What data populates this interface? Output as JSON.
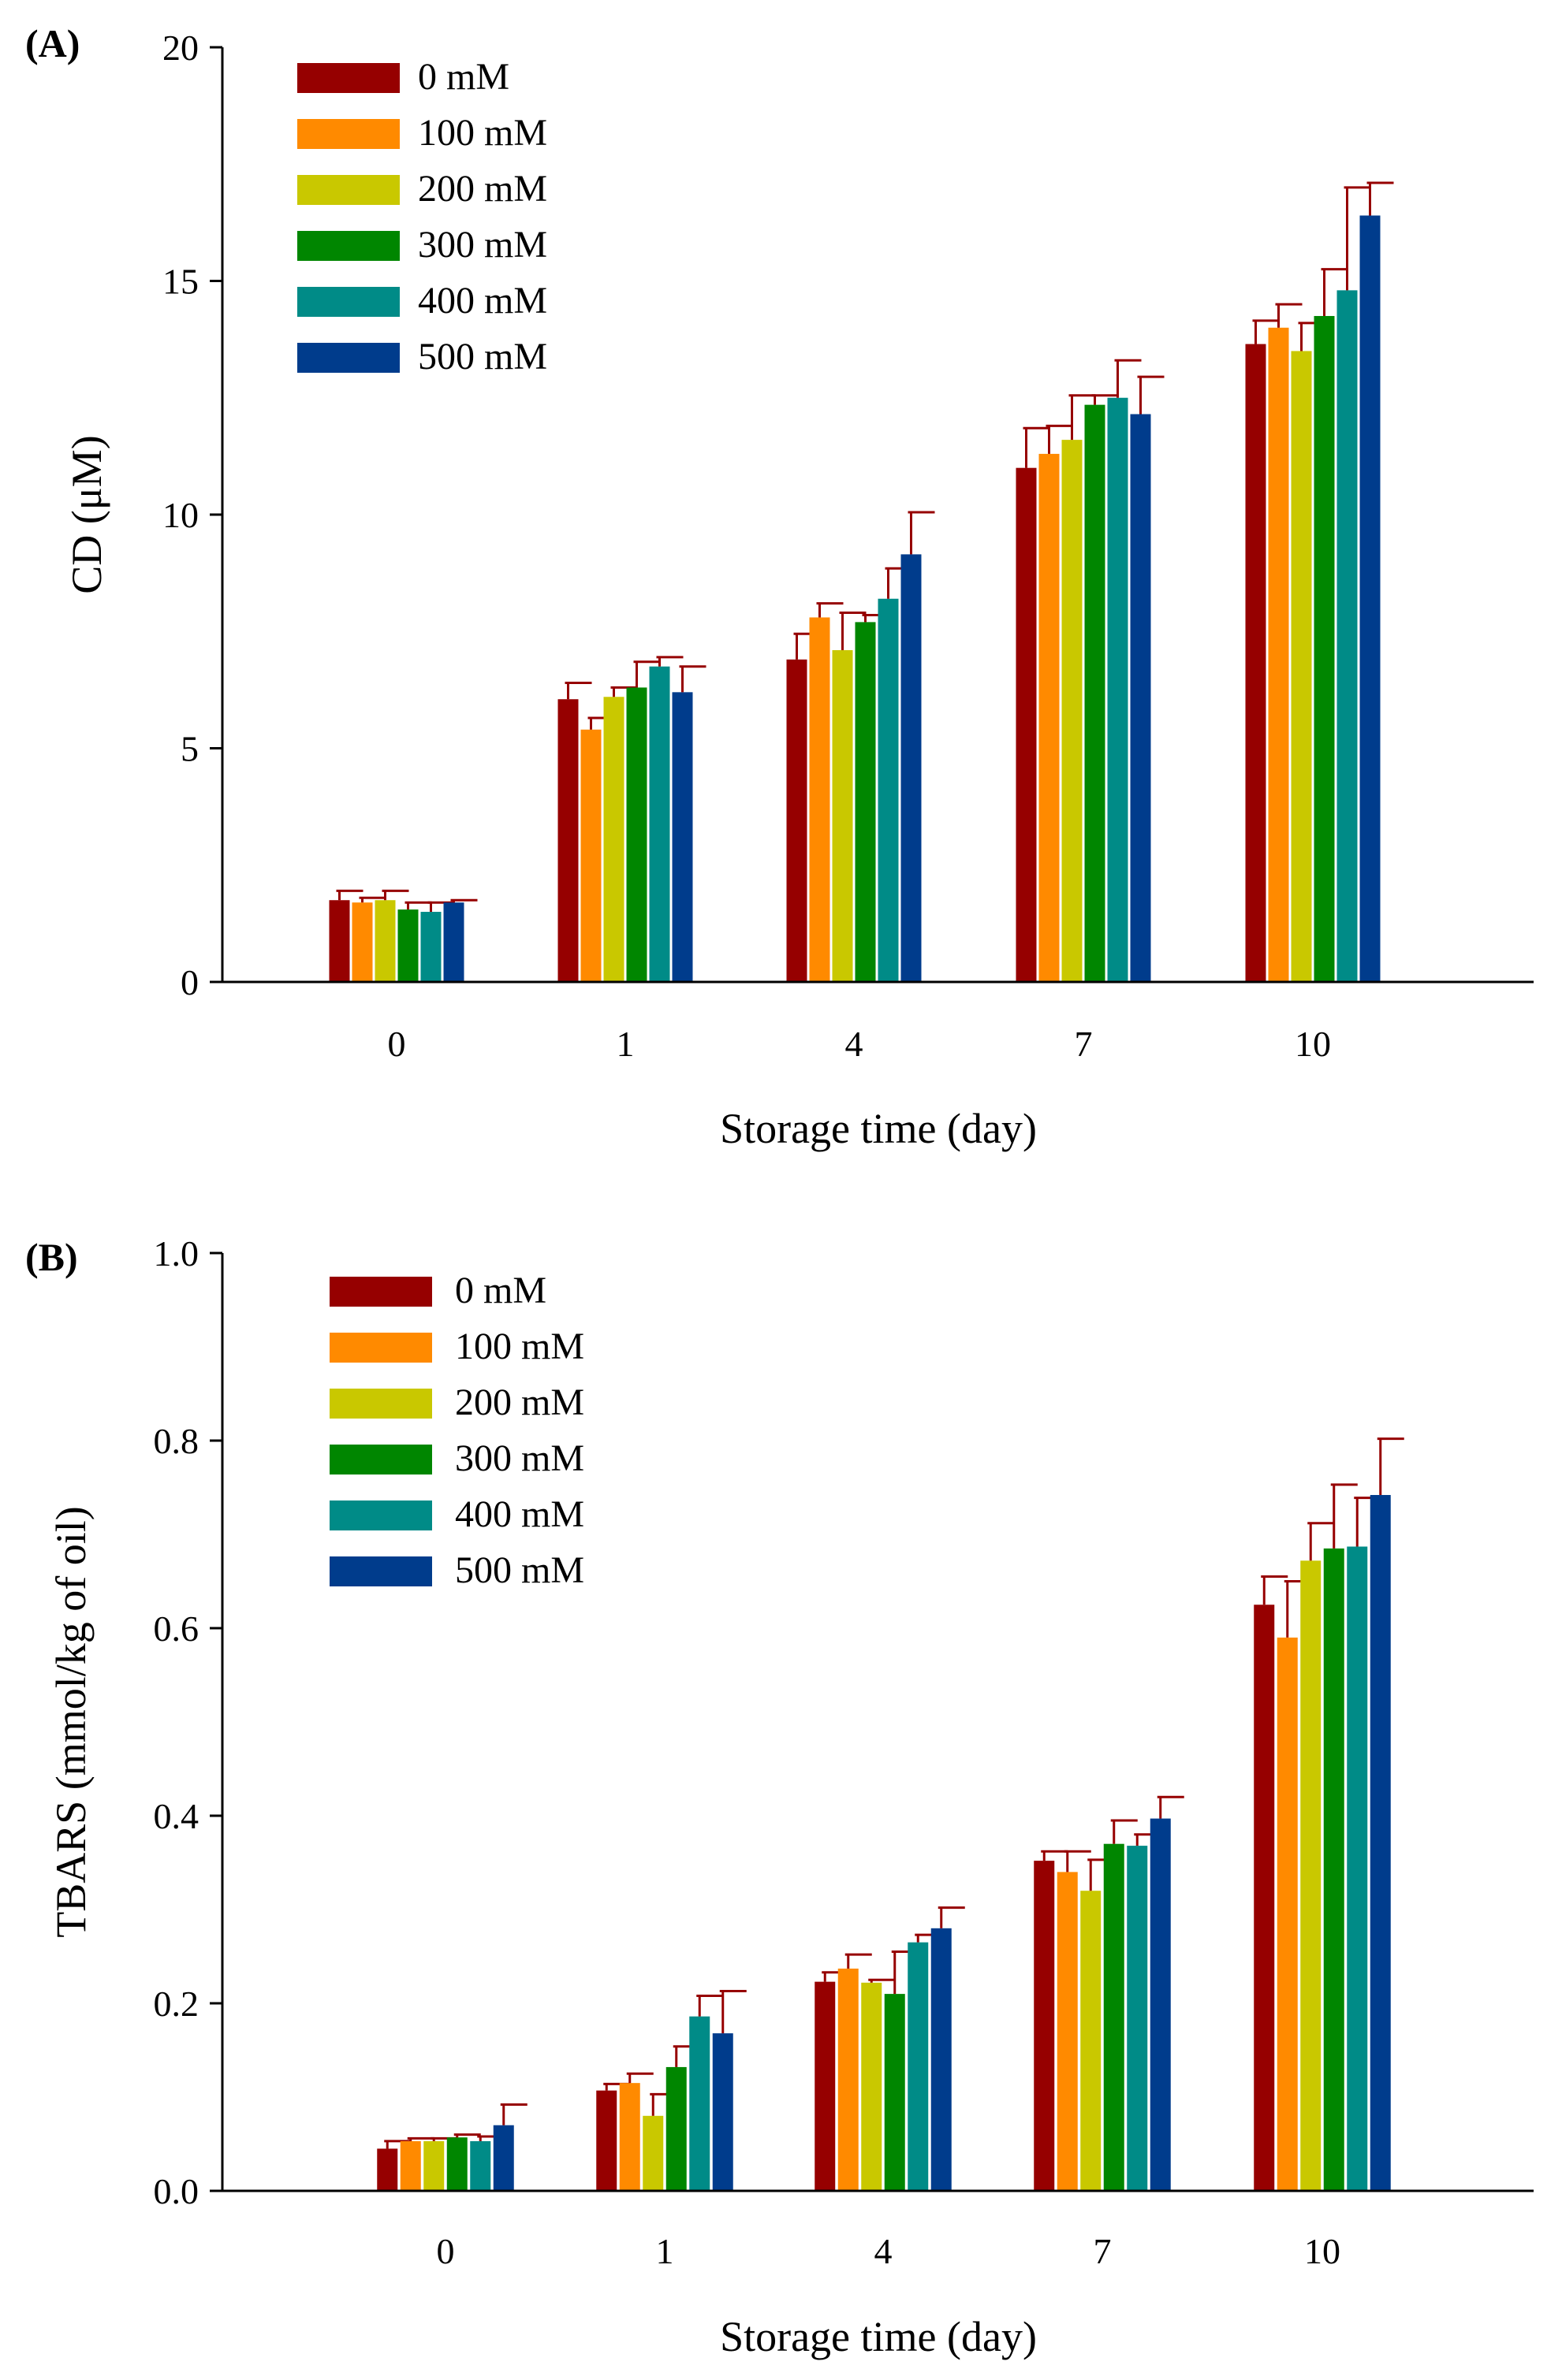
{
  "colors": {
    "0 mM": "#960000",
    "100 mM": "#ff8a00",
    "200 mM": "#c9c800",
    "300 mM": "#008600",
    "400 mM": "#008b87",
    "500 mM": "#003c8c",
    "error_bar": "#960000",
    "axis": "#000000"
  },
  "chart_data": [
    {
      "type": "bar",
      "panel_label": "(A)",
      "categories": [
        "0",
        "1",
        "4",
        "7",
        "10"
      ],
      "xlabel": "Storage time (day)",
      "ylabel": "CD (μM)",
      "ylim": [
        0,
        20
      ],
      "yticks": [
        "0",
        "5",
        "10",
        "15",
        "20"
      ],
      "ytick_values": [
        0,
        5,
        10,
        15,
        20
      ],
      "legend_position": "top-left",
      "series": [
        {
          "name": "0 mM",
          "values": [
            1.75,
            6.05,
            6.9,
            11.0,
            13.65
          ],
          "errors": [
            0.2,
            0.35,
            0.55,
            0.85,
            0.5
          ]
        },
        {
          "name": "100 mM",
          "values": [
            1.7,
            5.4,
            7.8,
            11.3,
            14.0
          ],
          "errors": [
            0.1,
            0.25,
            0.3,
            0.6,
            0.5
          ]
        },
        {
          "name": "200 mM",
          "values": [
            1.75,
            6.1,
            7.1,
            11.6,
            13.5
          ],
          "errors": [
            0.2,
            0.2,
            0.8,
            0.95,
            0.6
          ]
        },
        {
          "name": "300 mM",
          "values": [
            1.55,
            6.3,
            7.7,
            12.35,
            14.25
          ],
          "errors": [
            0.15,
            0.55,
            0.15,
            0.2,
            1.0
          ]
        },
        {
          "name": "400 mM",
          "values": [
            1.5,
            6.75,
            8.2,
            12.5,
            14.8
          ],
          "errors": [
            0.2,
            0.2,
            0.65,
            0.8,
            2.2
          ]
        },
        {
          "name": "500 mM",
          "values": [
            1.7,
            6.2,
            9.15,
            12.15,
            16.4
          ],
          "errors": [
            0.05,
            0.55,
            0.9,
            0.8,
            0.7
          ]
        }
      ]
    },
    {
      "type": "bar",
      "panel_label": "(B)",
      "categories": [
        "0",
        "1",
        "4",
        "7",
        "10"
      ],
      "xlabel": "Storage time (day)",
      "ylabel": "TBARS (mmol/kg of oil)",
      "ylim": [
        0,
        1.0
      ],
      "yticks": [
        "0.0",
        "0.2",
        "0.4",
        "0.6",
        "0.8",
        "1.0"
      ],
      "ytick_values": [
        0,
        0.2,
        0.4,
        0.6,
        0.8,
        1.0
      ],
      "legend_position": "top-left",
      "series": [
        {
          "name": "0 mM",
          "values": [
            0.045,
            0.107,
            0.223,
            0.352,
            0.625
          ],
          "errors": [
            0.008,
            0.007,
            0.01,
            0.01,
            0.03
          ]
        },
        {
          "name": "100 mM",
          "values": [
            0.053,
            0.115,
            0.237,
            0.34,
            0.59
          ],
          "errors": [
            0.003,
            0.01,
            0.015,
            0.022,
            0.06
          ]
        },
        {
          "name": "200 mM",
          "values": [
            0.053,
            0.08,
            0.222,
            0.32,
            0.672
          ],
          "errors": [
            0.003,
            0.023,
            0.003,
            0.033,
            0.04
          ]
        },
        {
          "name": "300 mM",
          "values": [
            0.057,
            0.132,
            0.21,
            0.37,
            0.685
          ],
          "errors": [
            0.003,
            0.022,
            0.045,
            0.025,
            0.068
          ]
        },
        {
          "name": "400 mM",
          "values": [
            0.053,
            0.186,
            0.265,
            0.368,
            0.687
          ],
          "errors": [
            0.005,
            0.022,
            0.008,
            0.012,
            0.052
          ]
        },
        {
          "name": "500 mM",
          "values": [
            0.07,
            0.168,
            0.28,
            0.397,
            0.742
          ],
          "errors": [
            0.022,
            0.045,
            0.022,
            0.023,
            0.06
          ]
        }
      ]
    }
  ]
}
